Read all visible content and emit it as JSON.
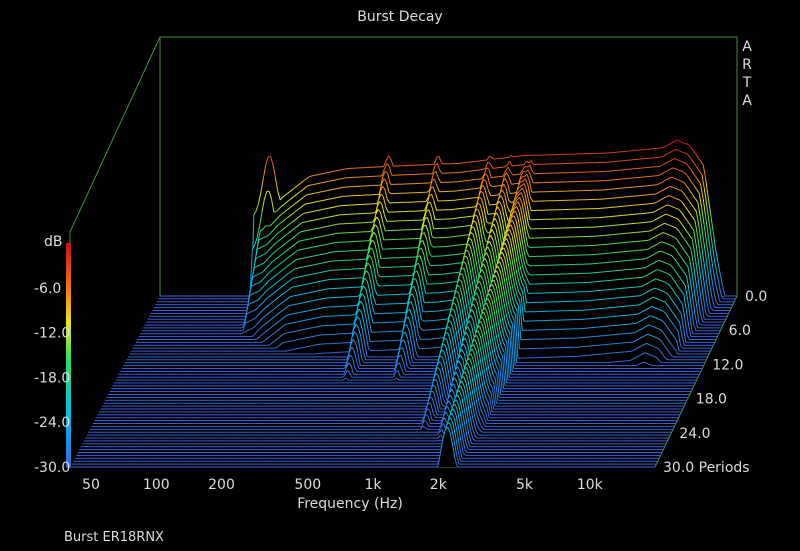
{
  "chart_data": {
    "type": "waterfall",
    "title": "Burst Decay",
    "xlabel": "Frequency (Hz)",
    "xscale": "log",
    "xlim": [
      40,
      20000
    ],
    "x_ticks": [
      {
        "value": 50,
        "label": "50"
      },
      {
        "value": 100,
        "label": "100"
      },
      {
        "value": 200,
        "label": "200"
      },
      {
        "value": 500,
        "label": "500"
      },
      {
        "value": 1000,
        "label": "1k"
      },
      {
        "value": 2000,
        "label": "2k"
      },
      {
        "value": 5000,
        "label": "5k"
      },
      {
        "value": 10000,
        "label": "10k"
      }
    ],
    "z_ticks": [
      "0.0",
      "6.0",
      "12.0",
      "18.0",
      "24.0",
      "30.0 Periods"
    ],
    "z_range_periods": [
      0,
      30
    ],
    "colorbar": {
      "unit": "dB",
      "range": [
        -30,
        0
      ],
      "ticks": [
        "-6.0",
        "-12.0",
        "-18.0",
        "-24.0",
        "-30.0"
      ]
    },
    "watermark": "ARTA",
    "footer": "Burst ER18RNX",
    "front_response_db": [
      {
        "f": 40,
        "db": -30
      },
      {
        "f": 110,
        "db": -30
      },
      {
        "f": 120,
        "db": -14
      },
      {
        "f": 135,
        "db": -13
      },
      {
        "f": 150,
        "db": -11
      },
      {
        "f": 200,
        "db": -7
      },
      {
        "f": 300,
        "db": -5.5
      },
      {
        "f": 500,
        "db": -5
      },
      {
        "f": 1000,
        "db": -4.5
      },
      {
        "f": 2000,
        "db": -3
      },
      {
        "f": 5000,
        "db": -2.5
      },
      {
        "f": 9000,
        "db": -1.5
      },
      {
        "f": 10500,
        "db": 0
      },
      {
        "f": 12000,
        "db": -1
      },
      {
        "f": 14000,
        "db": -5
      },
      {
        "f": 16000,
        "db": -22
      },
      {
        "f": 17500,
        "db": -30
      }
    ],
    "resonance_ridges": [
      {
        "f": 130,
        "decay_periods": 1.5
      },
      {
        "f": 470,
        "decay_periods": 10
      },
      {
        "f": 800,
        "decay_periods": 10
      },
      {
        "f": 1400,
        "decay_periods": 16
      },
      {
        "f": 1750,
        "decay_periods": 17
      },
      {
        "f": 2100,
        "decay_periods": 20
      },
      {
        "f": 2200,
        "decay_periods": 28
      },
      {
        "f": 9500,
        "decay_periods": 4
      },
      {
        "f": 10800,
        "decay_periods": 2
      }
    ]
  }
}
